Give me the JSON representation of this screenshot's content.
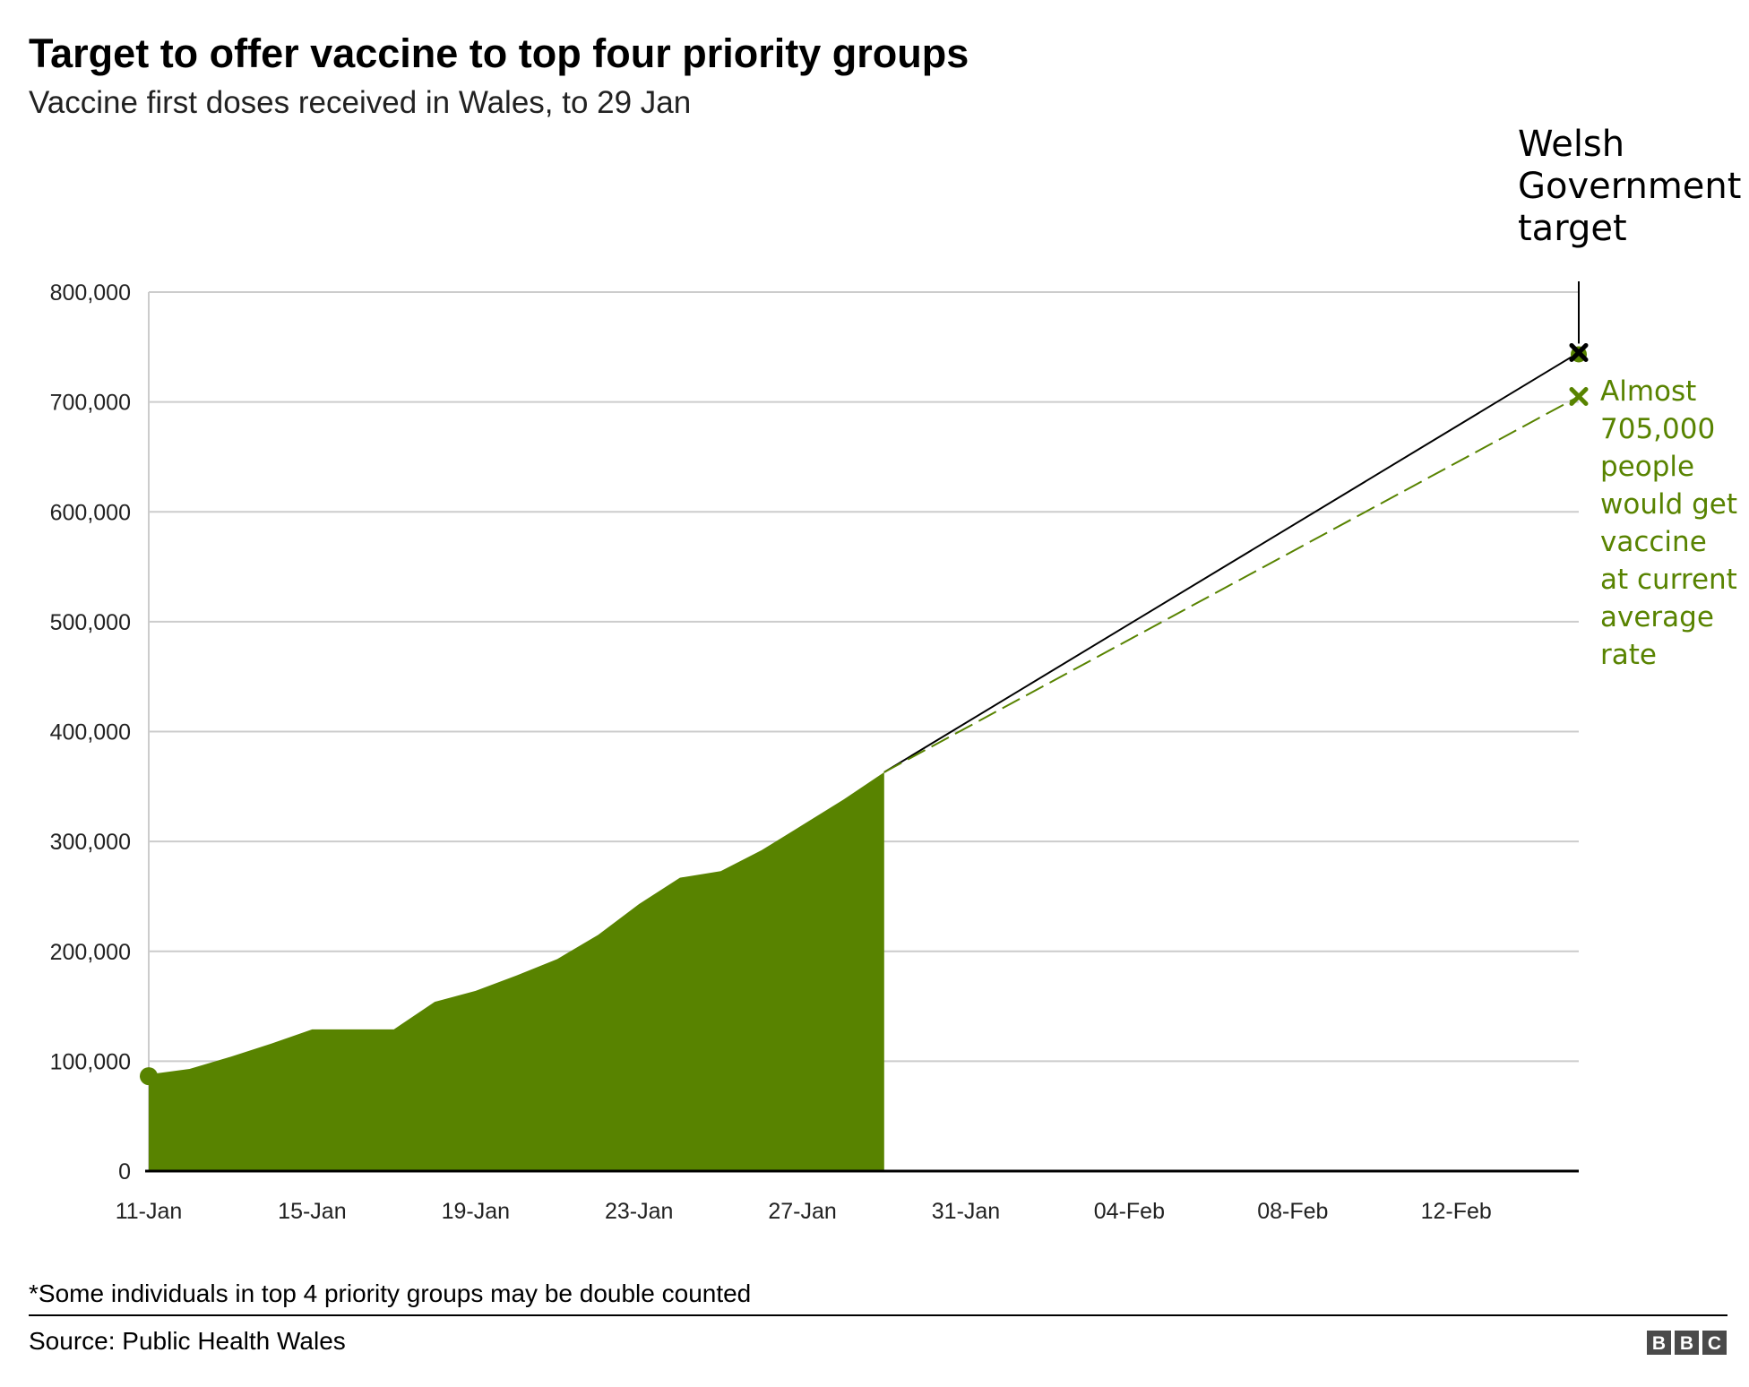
{
  "title": "Target to offer vaccine to top four priority groups",
  "subtitle": "Vaccine first doses received in Wales, to 29 Jan",
  "footnote": "*Some individuals in top 4 priority groups may be double counted",
  "source": "Source: Public Health Wales",
  "logo": [
    "B",
    "B",
    "C"
  ],
  "colors": {
    "area": "#588300",
    "target_line": "#000000",
    "projection": "#588300",
    "grid": "#cccccc",
    "axis": "#000000"
  },
  "chart_data": {
    "type": "area",
    "title": "Target to offer vaccine to top four priority groups",
    "subtitle": "Vaccine first doses received in Wales, to 29 Jan",
    "xlabel": "",
    "ylabel": "",
    "ylim": [
      0,
      800000
    ],
    "xlim": [
      "11-Jan",
      "15-Feb"
    ],
    "grid": true,
    "y_ticks": [
      0,
      100000,
      200000,
      300000,
      400000,
      500000,
      600000,
      700000,
      800000
    ],
    "y_tick_labels": [
      "0",
      "100,000",
      "200,000",
      "300,000",
      "400,000",
      "500,000",
      "600,000",
      "700,000",
      "800,000"
    ],
    "x_ticks": [
      "11-Jan",
      "15-Jan",
      "19-Jan",
      "23-Jan",
      "27-Jan",
      "31-Jan",
      "04-Feb",
      "08-Feb",
      "12-Feb"
    ],
    "series": [
      {
        "type": "area",
        "x": [
          "11-Jan",
          "12-Jan",
          "13-Jan",
          "14-Jan",
          "15-Jan",
          "16-Jan",
          "17-Jan",
          "18-Jan",
          "19-Jan",
          "20-Jan",
          "21-Jan",
          "22-Jan",
          "23-Jan",
          "24-Jan",
          "25-Jan",
          "26-Jan",
          "27-Jan",
          "28-Jan",
          "29-Jan"
        ],
        "values": [
          88000,
          93000,
          104000,
          116000,
          129000,
          129000,
          129000,
          154000,
          164000,
          178000,
          193000,
          215000,
          243000,
          267000,
          273000,
          292000,
          315000,
          338000,
          363000
        ]
      },
      {
        "type": "line",
        "x": [
          "29-Jan",
          "15-Feb"
        ],
        "values": [
          363000,
          745000
        ]
      },
      {
        "type": "line",
        "style": "dashed",
        "x": [
          "29-Jan",
          "15-Feb"
        ],
        "values": [
          363000,
          705000
        ]
      }
    ],
    "annotations": [
      {
        "text": [
          "Welsh",
          "Government",
          "target"
        ],
        "x": "15-Feb",
        "y": 745000
      },
      {
        "text": [
          "Almost",
          "705,000",
          "people",
          "would get",
          "vaccine",
          "at current",
          "average",
          "rate"
        ],
        "x": "15-Feb",
        "y": 705000
      }
    ]
  }
}
